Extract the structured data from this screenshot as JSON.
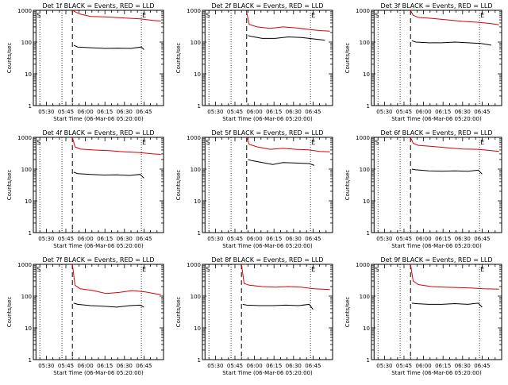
{
  "figure": {
    "title_template": "Det {d} BLACK = Events, RED = LLD",
    "xlabel": "Start Time (06-Mar-06 05:20:00)",
    "ylabel": "Counts/sec",
    "yscale": "log",
    "ylim": [
      1,
      1000
    ],
    "xlim_minutes_from_start": [
      0,
      100
    ],
    "y_tick_labels": [
      {
        "value": 1,
        "label": "1"
      },
      {
        "value": 10,
        "label": "10"
      },
      {
        "value": 100,
        "label": "100"
      },
      {
        "value": 1000,
        "label": "1000"
      }
    ],
    "x_tick_labels": [
      {
        "minutes": 10,
        "label": "05:30"
      },
      {
        "minutes": 25,
        "label": "05:45"
      },
      {
        "minutes": 40,
        "label": "06:00"
      },
      {
        "minutes": 55,
        "label": "06:15"
      },
      {
        "minutes": 70,
        "label": "06:30"
      },
      {
        "minutes": 85,
        "label": "06:45"
      }
    ],
    "marker_S_label": "S",
    "marker_E_label": "E",
    "colors": {
      "events": "#000000",
      "lld": "#dd0000",
      "axes": "#000000",
      "background": "#ffffff"
    }
  },
  "chart_data": [
    {
      "detector": "1f",
      "title": "Det 1f BLACK = Events, RED = LLD",
      "type": "line",
      "x_unit": "minutes since 05:20:00",
      "marker_lines": {
        "S_solid": 2,
        "dotted": [
          5,
          22,
          83
        ],
        "dashed": 30,
        "E": 83
      },
      "series": [
        {
          "name": "LLD",
          "color": "#dd0000",
          "x": [
            30,
            32,
            36,
            44,
            55,
            68,
            82,
            92,
            98
          ],
          "y": [
            1000,
            900,
            760,
            640,
            620,
            580,
            540,
            480,
            460
          ]
        },
        {
          "name": "Events",
          "color": "#000000",
          "x": [
            31,
            34,
            45,
            55,
            65,
            75,
            83,
            85
          ],
          "y": [
            80,
            70,
            66,
            63,
            64,
            63,
            70,
            58
          ]
        }
      ]
    },
    {
      "detector": "2f",
      "title": "Det 2f BLACK = Events, RED = LLD",
      "type": "line",
      "x_unit": "minutes since 05:20:00",
      "marker_lines": {
        "S_solid": 2,
        "dotted": [
          5,
          22,
          83
        ],
        "dashed": 34,
        "E": 83
      },
      "series": [
        {
          "name": "LLD",
          "color": "#dd0000",
          "x": [
            34,
            36,
            42,
            52,
            62,
            72,
            82,
            90,
            98
          ],
          "y": [
            850,
            360,
            300,
            270,
            300,
            280,
            250,
            230,
            220
          ]
        },
        {
          "name": "Events",
          "color": "#000000",
          "x": [
            35,
            38,
            46,
            56,
            66,
            76,
            86,
            94
          ],
          "y": [
            160,
            150,
            130,
            130,
            145,
            140,
            125,
            115
          ]
        }
      ]
    },
    {
      "detector": "3f",
      "title": "Det 3f BLACK = Events, RED = LLD",
      "type": "line",
      "x_unit": "minutes since 05:20:00",
      "marker_lines": {
        "S_solid": 2,
        "dotted": [
          5,
          22,
          83
        ],
        "dashed": 30,
        "E": 83
      },
      "series": [
        {
          "name": "LLD",
          "color": "#dd0000",
          "x": [
            30,
            32,
            36,
            46,
            58,
            70,
            82,
            92,
            98
          ],
          "y": [
            1000,
            700,
            600,
            560,
            500,
            450,
            420,
            380,
            350
          ]
        },
        {
          "name": "Events",
          "color": "#000000",
          "x": [
            31,
            34,
            44,
            54,
            64,
            74,
            84,
            92
          ],
          "y": [
            110,
            100,
            95,
            95,
            100,
            95,
            90,
            80
          ]
        }
      ]
    },
    {
      "detector": "4f",
      "title": "Det 4f BLACK = Events, RED = LLD",
      "type": "line",
      "x_unit": "minutes since 05:20:00",
      "marker_lines": {
        "S_solid": 2,
        "dotted": [
          5,
          22,
          83
        ],
        "dashed": 30,
        "E": 83
      },
      "series": [
        {
          "name": "LLD",
          "color": "#dd0000",
          "x": [
            30,
            32,
            36,
            46,
            58,
            70,
            82,
            92,
            98
          ],
          "y": [
            1000,
            500,
            430,
            400,
            380,
            350,
            330,
            300,
            290
          ]
        },
        {
          "name": "Events",
          "color": "#000000",
          "x": [
            31,
            34,
            44,
            54,
            64,
            74,
            82,
            85
          ],
          "y": [
            80,
            72,
            68,
            65,
            66,
            63,
            68,
            52
          ]
        }
      ]
    },
    {
      "detector": "5f",
      "title": "Det 5f BLACK = Events, RED = LLD",
      "type": "line",
      "x_unit": "minutes since 05:20:00",
      "marker_lines": {
        "S_solid": 2,
        "dotted": [
          5,
          22,
          83
        ],
        "dashed": 34,
        "E": 83
      },
      "series": [
        {
          "name": "LLD",
          "color": "#dd0000",
          "x": [
            34,
            36,
            42,
            52,
            62,
            72,
            82,
            90,
            98
          ],
          "y": [
            1000,
            600,
            500,
            420,
            450,
            420,
            400,
            360,
            350
          ]
        },
        {
          "name": "Events",
          "color": "#000000",
          "x": [
            35,
            38,
            46,
            54,
            62,
            72,
            82,
            86
          ],
          "y": [
            200,
            185,
            160,
            140,
            160,
            155,
            150,
            130
          ]
        }
      ]
    },
    {
      "detector": "6f",
      "title": "Det 6f BLACK = Events, RED = LLD",
      "type": "line",
      "x_unit": "minutes since 05:20:00",
      "marker_lines": {
        "S_solid": 2,
        "dotted": [
          5,
          22,
          83
        ],
        "dashed": 30,
        "E": 83
      },
      "series": [
        {
          "name": "LLD",
          "color": "#dd0000",
          "x": [
            30,
            32,
            36,
            46,
            58,
            70,
            82,
            92,
            98
          ],
          "y": [
            1000,
            650,
            560,
            520,
            470,
            430,
            420,
            380,
            360
          ]
        },
        {
          "name": "Events",
          "color": "#000000",
          "x": [
            31,
            34,
            44,
            54,
            64,
            74,
            82,
            85
          ],
          "y": [
            100,
            95,
            88,
            86,
            88,
            85,
            92,
            70
          ]
        }
      ]
    },
    {
      "detector": "7f",
      "title": "Det 7f BLACK = Events, RED = LLD",
      "type": "line",
      "x_unit": "minutes since 05:20:00",
      "marker_lines": {
        "S_solid": 2,
        "dotted": [
          5,
          22,
          83
        ],
        "dashed": 30,
        "E": 83
      },
      "series": [
        {
          "name": "LLD",
          "color": "#dd0000",
          "x": [
            30,
            32,
            36,
            46,
            56,
            66,
            76,
            86,
            98
          ],
          "y": [
            1000,
            220,
            170,
            150,
            120,
            130,
            150,
            135,
            110
          ]
        },
        {
          "name": "Events",
          "color": "#000000",
          "x": [
            31,
            34,
            44,
            54,
            64,
            74,
            82,
            85
          ],
          "y": [
            60,
            55,
            50,
            48,
            45,
            50,
            52,
            45
          ]
        }
      ]
    },
    {
      "detector": "8f",
      "title": "Det 8f BLACK = Events, RED = LLD",
      "type": "line",
      "x_unit": "minutes since 05:20:00",
      "marker_lines": {
        "S_solid": 2,
        "dotted": [
          5,
          22,
          83
        ],
        "dashed": 30,
        "E": 83
      },
      "series": [
        {
          "name": "LLD",
          "color": "#dd0000",
          "x": [
            30,
            32,
            36,
            46,
            56,
            66,
            76,
            86,
            98
          ],
          "y": [
            1000,
            250,
            220,
            200,
            190,
            200,
            190,
            170,
            160
          ]
        },
        {
          "name": "Events",
          "color": "#000000",
          "x": [
            31,
            34,
            44,
            54,
            64,
            74,
            82,
            85
          ],
          "y": [
            55,
            52,
            50,
            50,
            52,
            50,
            55,
            38
          ]
        }
      ]
    },
    {
      "detector": "9f",
      "title": "Det 9f BLACK = Events, RED = LLD",
      "type": "line",
      "x_unit": "minutes since 05:20:00",
      "marker_lines": {
        "S_solid": 2,
        "dotted": [
          5,
          22,
          83
        ],
        "dashed": 30,
        "E": 83
      },
      "series": [
        {
          "name": "LLD",
          "color": "#dd0000",
          "x": [
            30,
            32,
            36,
            46,
            56,
            66,
            76,
            86,
            98
          ],
          "y": [
            1000,
            300,
            230,
            200,
            190,
            185,
            180,
            170,
            165
          ]
        },
        {
          "name": "Events",
          "color": "#000000",
          "x": [
            31,
            34,
            44,
            54,
            64,
            74,
            82,
            85
          ],
          "y": [
            60,
            58,
            55,
            55,
            58,
            55,
            60,
            45
          ]
        }
      ]
    }
  ]
}
